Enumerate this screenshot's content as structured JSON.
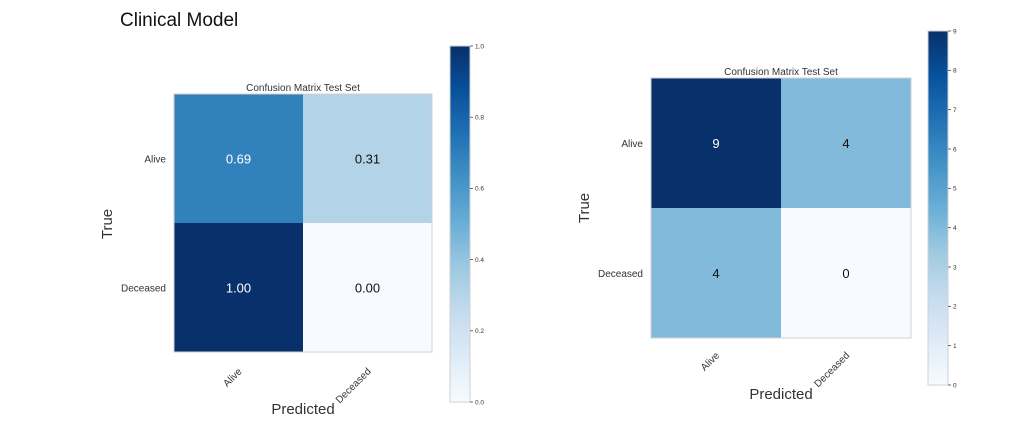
{
  "page": {
    "title": "Clinical Model"
  },
  "chart_data": [
    {
      "type": "heatmap",
      "title": "Confusion Matrix Test Set",
      "xlabel": "Predicted",
      "ylabel": "True",
      "x_categories": [
        "Alive",
        "Deceased"
      ],
      "y_categories": [
        "Alive",
        "Deceased"
      ],
      "values": [
        [
          0.69,
          0.31
        ],
        [
          1.0,
          0.0
        ]
      ],
      "value_labels": [
        [
          "0.69",
          "0.31"
        ],
        [
          "1.00",
          "0.00"
        ]
      ],
      "colorbar": {
        "min": 0.0,
        "max": 1.0,
        "ticks": [
          "0.0",
          "0.2",
          "0.4",
          "0.6",
          "0.8",
          "1.0"
        ]
      },
      "colormap": "Blues",
      "colors": {
        "low": "#f7fbff",
        "high": "#08306b"
      }
    },
    {
      "type": "heatmap",
      "title": "Confusion Matrix Test Set",
      "xlabel": "Predicted",
      "ylabel": "True",
      "x_categories": [
        "Alive",
        "Deceased"
      ],
      "y_categories": [
        "Alive",
        "Deceased"
      ],
      "values": [
        [
          9,
          4
        ],
        [
          4,
          0
        ]
      ],
      "value_labels": [
        [
          "9",
          "4"
        ],
        [
          "4",
          "0"
        ]
      ],
      "colorbar": {
        "min": 0,
        "max": 9,
        "ticks": [
          "0",
          "1",
          "2",
          "3",
          "4",
          "5",
          "6",
          "7",
          "8",
          "9"
        ]
      },
      "colormap": "Blues",
      "colors": {
        "low": "#f7fbff",
        "high": "#08306b"
      }
    }
  ]
}
